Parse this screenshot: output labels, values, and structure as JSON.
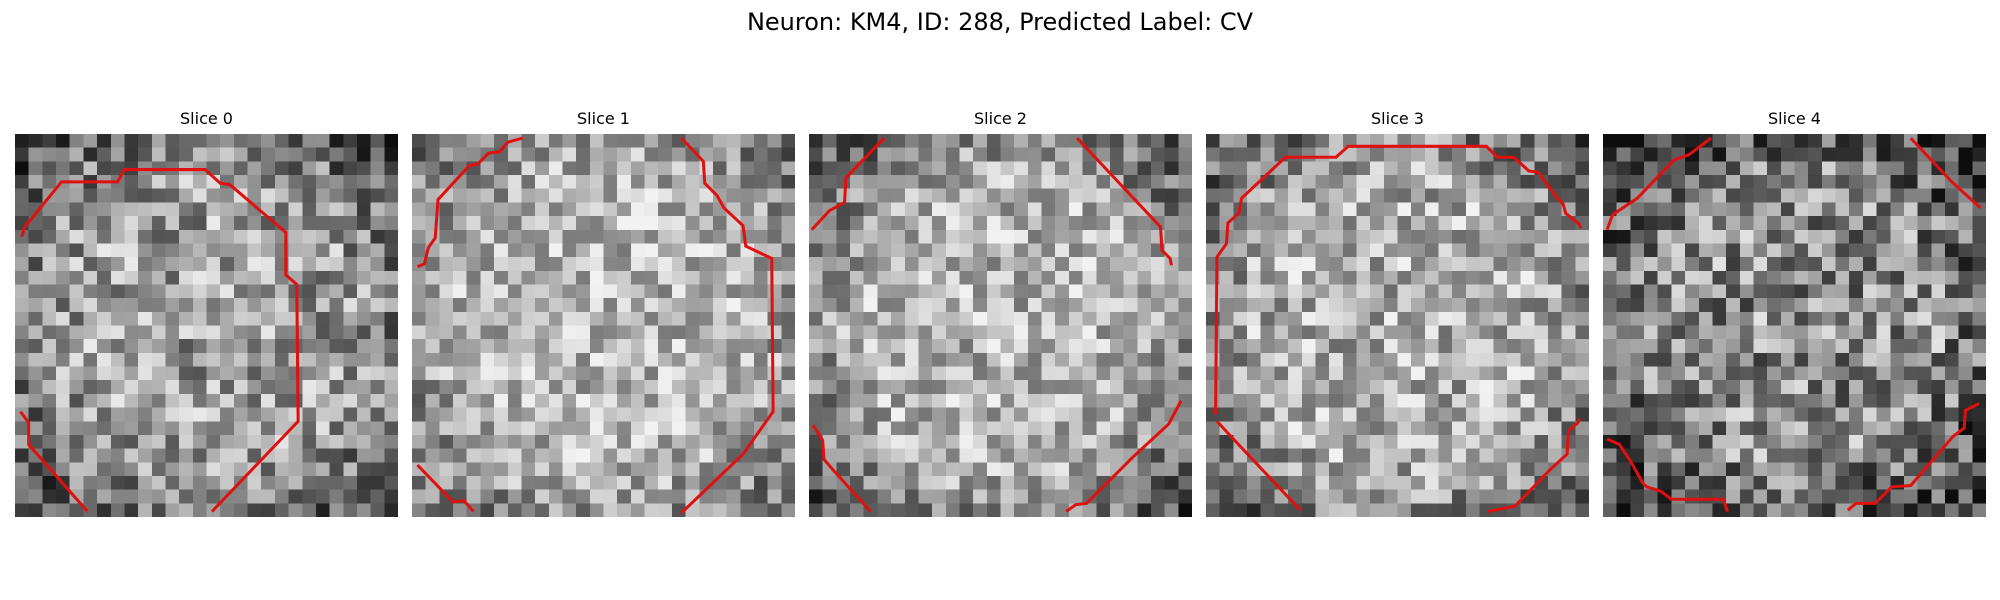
{
  "figure": {
    "title": "Neuron: KM4, ID: 288, Predicted Label: CV"
  },
  "colors": {
    "contour": "#e01010",
    "background": "#ffffff",
    "colormap": "grayscale"
  },
  "slices": [
    {
      "label": "Slice 0"
    },
    {
      "label": "Slice 1"
    },
    {
      "label": "Slice 2"
    },
    {
      "label": "Slice 3"
    },
    {
      "label": "Slice 4"
    }
  ]
}
